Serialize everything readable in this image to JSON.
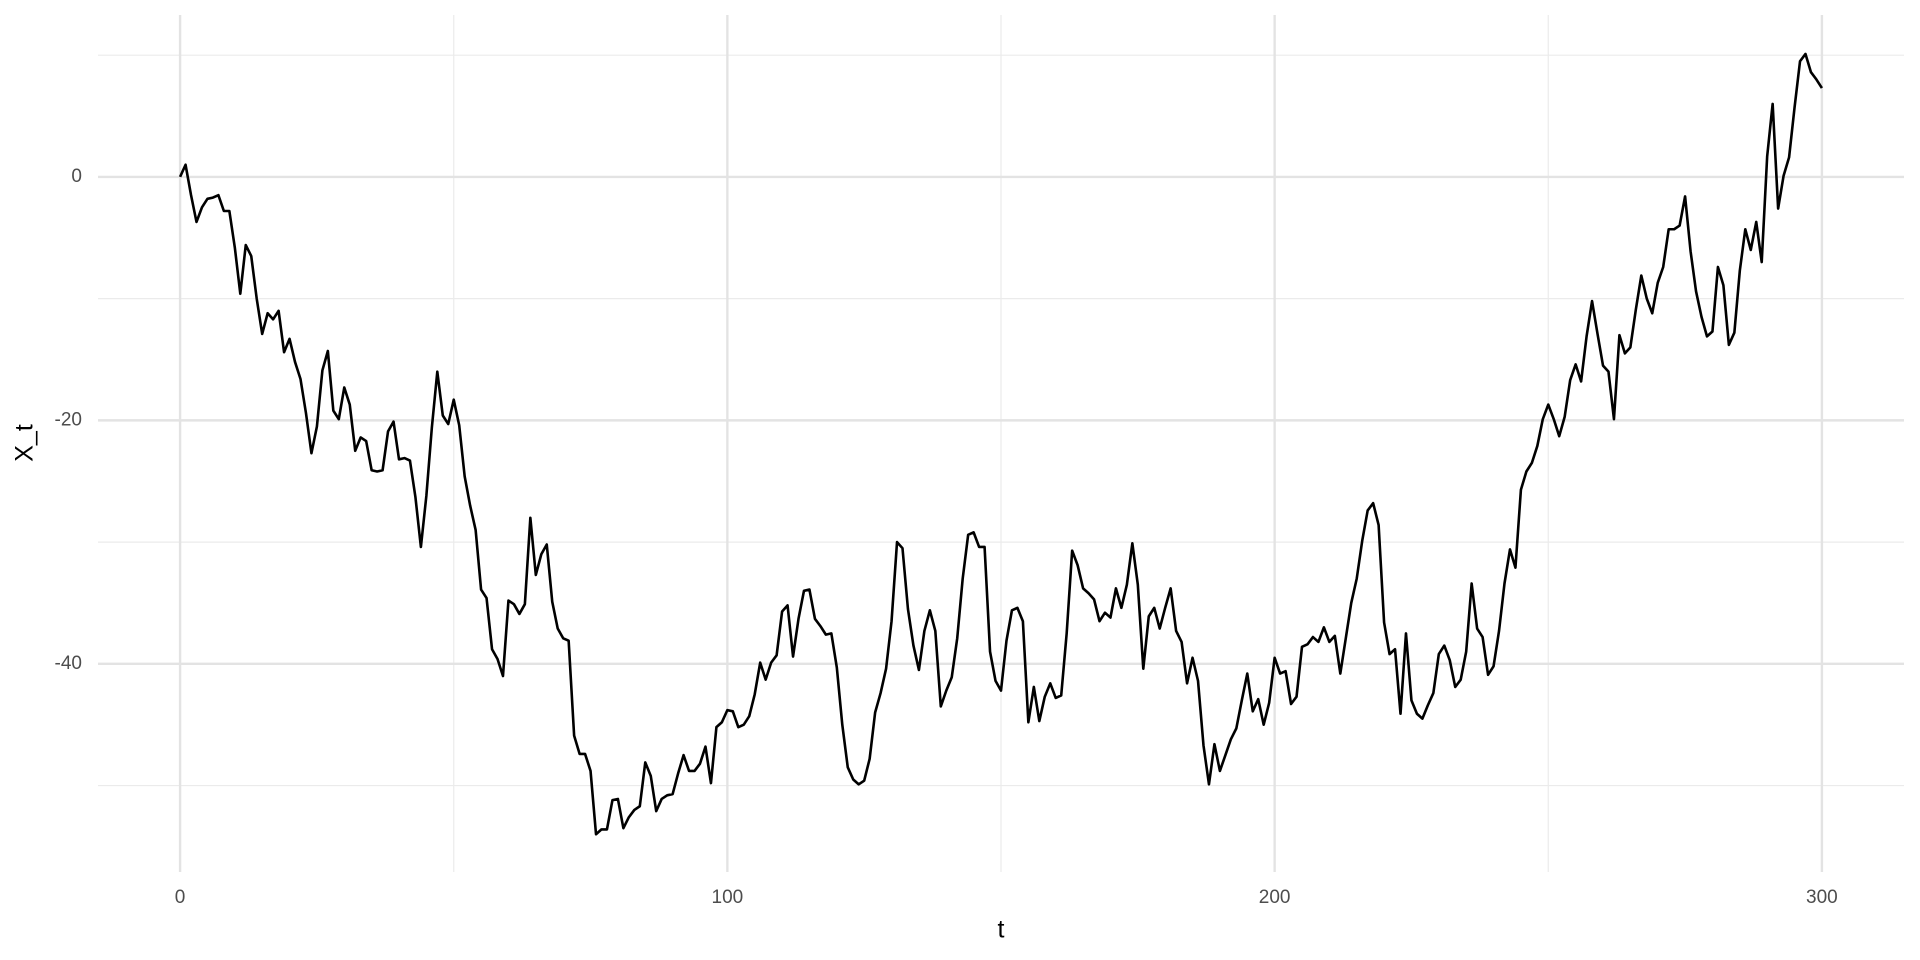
{
  "chart_data": {
    "type": "line",
    "x_label": "t",
    "y_label": "X_t",
    "color": "#000000",
    "grid": true,
    "xlim": [
      -15,
      315
    ],
    "ylim": [
      -57.1,
      13.3
    ],
    "xticks": [
      0,
      100,
      200,
      300
    ],
    "yticks": [
      -40,
      -20,
      0
    ],
    "xminor": [
      50,
      150,
      250
    ],
    "yminor": [
      -50,
      -30,
      -10,
      10
    ],
    "x": [
      0,
      1,
      2,
      3,
      4,
      5,
      6,
      7,
      8,
      9,
      10,
      11,
      12,
      13,
      14,
      15,
      16,
      17,
      18,
      19,
      20,
      21,
      22,
      23,
      24,
      25,
      26,
      27,
      28,
      29,
      30,
      31,
      32,
      33,
      34,
      35,
      36,
      37,
      38,
      39,
      40,
      41,
      42,
      43,
      44,
      45,
      46,
      47,
      48,
      49,
      50,
      51,
      52,
      53,
      54,
      55,
      56,
      57,
      58,
      59,
      60,
      61,
      62,
      63,
      64,
      65,
      66,
      67,
      68,
      69,
      70,
      71,
      72,
      73,
      74,
      75,
      76,
      77,
      78,
      79,
      80,
      81,
      82,
      83,
      84,
      85,
      86,
      87,
      88,
      89,
      90,
      91,
      92,
      93,
      94,
      95,
      96,
      97,
      98,
      99,
      100,
      101,
      102,
      103,
      104,
      105,
      106,
      107,
      108,
      109,
      110,
      111,
      112,
      113,
      114,
      115,
      116,
      117,
      118,
      119,
      120,
      121,
      122,
      123,
      124,
      125,
      126,
      127,
      128,
      129,
      130,
      131,
      132,
      133,
      134,
      135,
      136,
      137,
      138,
      139,
      140,
      141,
      142,
      143,
      144,
      145,
      146,
      147,
      148,
      149,
      150,
      151,
      152,
      153,
      154,
      155,
      156,
      157,
      158,
      159,
      160,
      161,
      162,
      163,
      164,
      165,
      166,
      167,
      168,
      169,
      170,
      171,
      172,
      173,
      174,
      175,
      176,
      177,
      178,
      179,
      180,
      181,
      182,
      183,
      184,
      185,
      186,
      187,
      188,
      189,
      190,
      191,
      192,
      193,
      194,
      195,
      196,
      197,
      198,
      199,
      200,
      201,
      202,
      203,
      204,
      205,
      206,
      207,
      208,
      209,
      210,
      211,
      212,
      213,
      214,
      215,
      216,
      217,
      218,
      219,
      220,
      221,
      222,
      223,
      224,
      225,
      226,
      227,
      228,
      229,
      230,
      231,
      232,
      233,
      234,
      235,
      236,
      237,
      238,
      239,
      240,
      241,
      242,
      243,
      244,
      245,
      246,
      247,
      248,
      249,
      250,
      251,
      252,
      253,
      254,
      255,
      256,
      257,
      258,
      259,
      260,
      261,
      262,
      263,
      264,
      265,
      266,
      267,
      268,
      269,
      270,
      271,
      272,
      273,
      274,
      275,
      276,
      277,
      278,
      279,
      280,
      281,
      282,
      283,
      284,
      285,
      286,
      287,
      288,
      289,
      290,
      291,
      292,
      293,
      294,
      295,
      296,
      297,
      298,
      299,
      300
    ],
    "values": [
      0,
      1.0,
      -1.5,
      -3.7,
      -2.5,
      -1.8,
      -1.7,
      -1.5,
      -2.8,
      -2.8,
      -5.8,
      -9.6,
      -5.6,
      -6.5,
      -10,
      -12.9,
      -11.2,
      -11.7,
      -11,
      -14.4,
      -13.3,
      -15.2,
      -16.6,
      -19.4,
      -22.7,
      -20.5,
      -15.9,
      -14.3,
      -19.2,
      -19.9,
      -17.3,
      -18.7,
      -22.5,
      -21.4,
      -21.7,
      -24.1,
      -24.2,
      -24.1,
      -20.9,
      -20.1,
      -23.2,
      -23.1,
      -23.3,
      -26.3,
      -30.4,
      -26.2,
      -20.6,
      -16,
      -19.6,
      -20.3,
      -18.3,
      -20.4,
      -24.6,
      -27,
      -29,
      -33.9,
      -34.6,
      -38.8,
      -39.6,
      -41,
      -34.8,
      -35.1,
      -35.9,
      -35.1,
      -28,
      -32.7,
      -31,
      -30.2,
      -34.9,
      -37.1,
      -37.9,
      -38.1,
      -45.9,
      -47.4,
      -47.4,
      -48.8,
      -54,
      -53.6,
      -53.6,
      -51.2,
      -51.1,
      -53.5,
      -52.6,
      -52,
      -51.7,
      -48.1,
      -49.2,
      -52.1,
      -51.1,
      -50.8,
      -50.7,
      -49,
      -47.5,
      -48.8,
      -48.8,
      -48.2,
      -46.8,
      -49.8,
      -45.2,
      -44.8,
      -43.8,
      -43.9,
      -45.2,
      -45,
      -44.3,
      -42.5,
      -39.9,
      -41.3,
      -39.9,
      -39.3,
      -35.7,
      -35.2,
      -39.4,
      -36.3,
      -34,
      -33.9,
      -36.3,
      -36.9,
      -37.6,
      -37.5,
      -40.3,
      -45,
      -48.5,
      -49.5,
      -49.9,
      -49.6,
      -47.8,
      -44,
      -42.4,
      -40.4,
      -36.5,
      -30,
      -30.5,
      -35.5,
      -38.5,
      -40.5,
      -37.3,
      -35.6,
      -37.3,
      -43.5,
      -42.2,
      -41.1,
      -37.9,
      -33,
      -29.4,
      -29.2,
      -30.4,
      -30.4,
      -39,
      -41.4,
      -42.2,
      -38.1,
      -35.6,
      -35.4,
      -36.5,
      -44.8,
      -41.9,
      -44.7,
      -42.7,
      -41.6,
      -42.8,
      -42.6,
      -37.5,
      -30.7,
      -31.9,
      -33.8,
      -34.2,
      -34.7,
      -36.5,
      -35.8,
      -36.2,
      -33.8,
      -35.4,
      -33.5,
      -30.1,
      -33.5,
      -40.4,
      -36.1,
      -35.4,
      -37.1,
      -35.4,
      -33.8,
      -37.3,
      -38.2,
      -41.6,
      -39.5,
      -41.4,
      -46.7,
      -49.9,
      -46.6,
      -48.8,
      -47.5,
      -46.2,
      -45.3,
      -43,
      -40.8,
      -43.9,
      -42.9,
      -45,
      -43.2,
      -39.5,
      -40.8,
      -40.6,
      -43.3,
      -42.7,
      -38.6,
      -38.4,
      -37.8,
      -38.2,
      -37,
      -38.2,
      -37.7,
      -40.8,
      -37.9,
      -35,
      -33,
      -29.9,
      -27.4,
      -26.8,
      -28.6,
      -36.6,
      -39.2,
      -38.8,
      -44.1,
      -37.5,
      -43,
      -44.1,
      -44.5,
      -43.4,
      -42.4,
      -39.2,
      -38.5,
      -39.7,
      -41.9,
      -41.3,
      -39,
      -33.4,
      -37.1,
      -37.8,
      -40.9,
      -40.2,
      -37.3,
      -33.4,
      -30.6,
      -32.1,
      -25.7,
      -24.2,
      -23.5,
      -22.1,
      -19.9,
      -18.7,
      -19.9,
      -21.3,
      -19.7,
      -16.7,
      -15.4,
      -16.8,
      -13.1,
      -10.2,
      -12.9,
      -15.5,
      -16,
      -19.9,
      -13,
      -14.5,
      -14,
      -10.9,
      -8.1,
      -10,
      -11.2,
      -8.7,
      -7.4,
      -4.3,
      -4.3,
      -4,
      -1.6,
      -6.1,
      -9.4,
      -11.5,
      -13.1,
      -12.7,
      -7.4,
      -8.9,
      -13.8,
      -12.8,
      -7.7,
      -4.3,
      -6,
      -3.7,
      -7,
      1.7,
      6,
      -2.6,
      0.1,
      1.6,
      5.7,
      9.5,
      10.1,
      8.6,
      8.0,
      7.3
    ]
  }
}
